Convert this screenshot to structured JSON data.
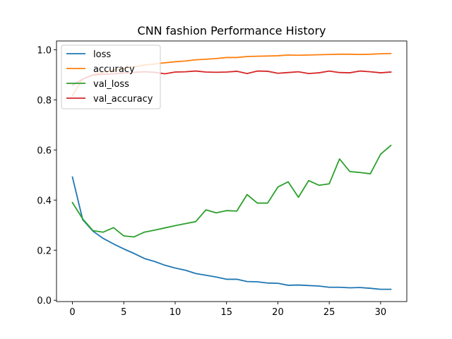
{
  "chart_data": {
    "type": "line",
    "title": "CNN fashion Performance History",
    "xlabel": "",
    "ylabel": "",
    "xlim": [
      -1.55,
      32.55
    ],
    "ylim": [
      -0.005,
      1.035
    ],
    "x_ticks": [
      0,
      5,
      10,
      15,
      20,
      25,
      30
    ],
    "y_ticks": [
      0.0,
      0.2,
      0.4,
      0.6,
      0.8,
      1.0
    ],
    "x_tick_labels": [
      "0",
      "5",
      "10",
      "15",
      "20",
      "25",
      "30"
    ],
    "y_tick_labels": [
      "0.0",
      "0.2",
      "0.4",
      "0.6",
      "0.8",
      "1.0"
    ],
    "grid": false,
    "legend_position": "top-left",
    "x": [
      0,
      1,
      2,
      3,
      4,
      5,
      6,
      7,
      8,
      9,
      10,
      11,
      12,
      13,
      14,
      15,
      16,
      17,
      18,
      19,
      20,
      21,
      22,
      23,
      24,
      25,
      26,
      27,
      28,
      29,
      30,
      31
    ],
    "series": [
      {
        "name": "loss",
        "color": "#1f77b4",
        "values": [
          0.492,
          0.322,
          0.276,
          0.247,
          0.225,
          0.205,
          0.187,
          0.167,
          0.155,
          0.14,
          0.129,
          0.12,
          0.107,
          0.1,
          0.093,
          0.084,
          0.084,
          0.075,
          0.074,
          0.069,
          0.068,
          0.06,
          0.061,
          0.059,
          0.057,
          0.052,
          0.052,
          0.05,
          0.051,
          0.048,
          0.044,
          0.044
        ]
      },
      {
        "name": "accuracy",
        "color": "#ff7f0e",
        "values": [
          0.818,
          0.883,
          0.9,
          0.91,
          0.918,
          0.925,
          0.931,
          0.939,
          0.943,
          0.948,
          0.952,
          0.955,
          0.96,
          0.962,
          0.965,
          0.969,
          0.969,
          0.973,
          0.974,
          0.975,
          0.976,
          0.979,
          0.978,
          0.979,
          0.98,
          0.981,
          0.982,
          0.982,
          0.981,
          0.982,
          0.984,
          0.985
        ]
      },
      {
        "name": "val_loss",
        "color": "#2ca02c",
        "values": [
          0.39,
          0.325,
          0.278,
          0.272,
          0.29,
          0.257,
          0.253,
          0.272,
          0.28,
          0.289,
          0.298,
          0.306,
          0.314,
          0.361,
          0.349,
          0.358,
          0.356,
          0.422,
          0.388,
          0.388,
          0.452,
          0.473,
          0.411,
          0.478,
          0.459,
          0.465,
          0.564,
          0.514,
          0.51,
          0.505,
          0.583,
          0.618
        ]
      },
      {
        "name": "val_accuracy",
        "color": "#d62728",
        "values": [
          0.858,
          0.883,
          0.899,
          0.902,
          0.904,
          0.907,
          0.91,
          0.912,
          0.91,
          0.904,
          0.911,
          0.912,
          0.915,
          0.911,
          0.91,
          0.911,
          0.914,
          0.905,
          0.915,
          0.914,
          0.906,
          0.909,
          0.912,
          0.905,
          0.908,
          0.915,
          0.909,
          0.908,
          0.915,
          0.912,
          0.908,
          0.911
        ]
      }
    ]
  }
}
